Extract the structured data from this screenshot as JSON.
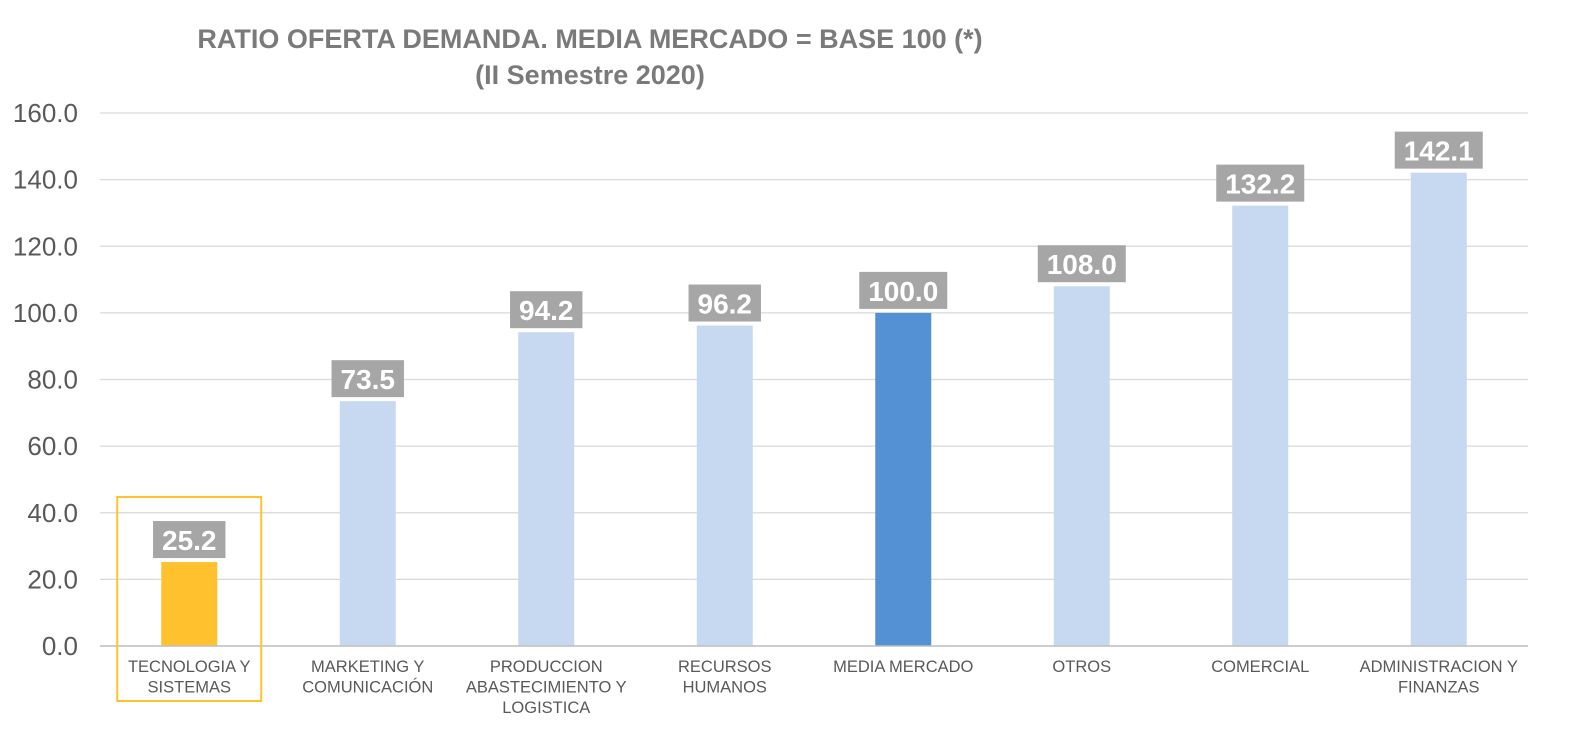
{
  "chart_data": {
    "type": "bar",
    "title": "RATIO OFERTA DEMANDA. MEDIA MERCADO = BASE 100 (*)",
    "subtitle": "(II Semestre 2020)",
    "categories": [
      [
        "TECNOLOGIA Y",
        "SISTEMAS"
      ],
      [
        "MARKETING Y",
        "COMUNICACIÓN"
      ],
      [
        "PRODUCCION",
        "ABASTECIMIENTO Y",
        "LOGISTICA"
      ],
      [
        "RECURSOS",
        "HUMANOS"
      ],
      [
        "MEDIA MERCADO"
      ],
      [
        "OTROS"
      ],
      [
        "COMERCIAL"
      ],
      [
        "ADMINISTRACION Y",
        "FINANZAS"
      ]
    ],
    "values": [
      25.2,
      73.5,
      94.2,
      96.2,
      100.0,
      108.0,
      132.2,
      142.1
    ],
    "value_labels": [
      "25.2",
      "73.5",
      "94.2",
      "96.2",
      "100.0",
      "108.0",
      "132.2",
      "142.1"
    ],
    "bar_colors": [
      "#FFC12E",
      "#C7D9F0",
      "#C7D9F0",
      "#C7D9F0",
      "#5490D4",
      "#C7D9F0",
      "#C7D9F0",
      "#C7D9F0"
    ],
    "highlight_index": 0,
    "highlight_color": "#FFC12E",
    "label_bg_color": "#A6A6A6",
    "grid_color": "#D9D9D9",
    "ylim": [
      0,
      160
    ],
    "yticks": [
      0,
      20,
      40,
      60,
      80,
      100,
      120,
      140,
      160
    ],
    "ytick_labels": [
      "0.0",
      "20.0",
      "40.0",
      "60.0",
      "80.0",
      "100.0",
      "120.0",
      "140.0",
      "160.0"
    ],
    "grid": true,
    "legend": "none"
  }
}
